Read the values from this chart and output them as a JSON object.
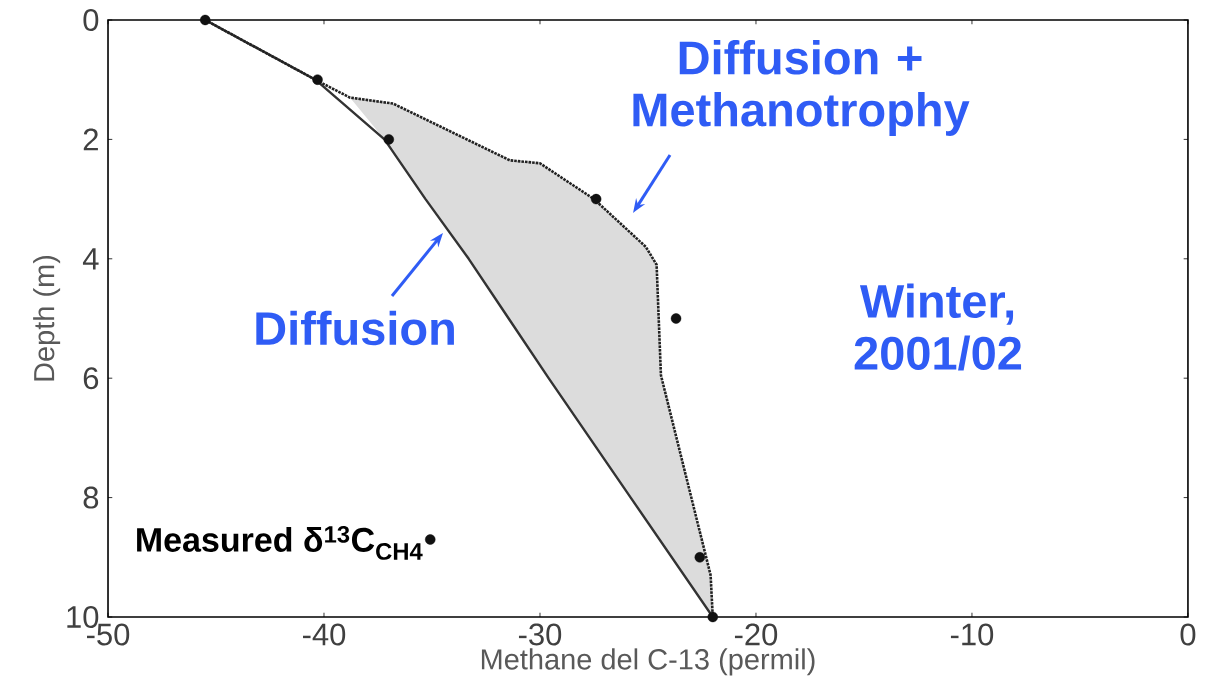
{
  "chart_data": {
    "type": "line",
    "xlabel": "Methane del C-13 (permil)",
    "ylabel": "Depth (m)",
    "xlim": [
      -50,
      0
    ],
    "xticks": [
      -50,
      -40,
      -30,
      -20,
      -10,
      0
    ],
    "ylim": [
      10,
      0
    ],
    "yticks": [
      0,
      2,
      4,
      6,
      8,
      10
    ],
    "legend": "bottom left",
    "marker": "circle",
    "series": [
      {
        "type": "area",
        "color": "#dcdcdc",
        "marker": "none",
        "x": [
          -38.8,
          -36.8,
          -31.4,
          -30.0,
          -27.5,
          -25.1,
          -24.6,
          -24.4,
          -22.1,
          -22.0,
          -25.8,
          -29.6,
          -33.3,
          -35.3,
          -37.2,
          -38.8
        ],
        "values": [
          1.3,
          1.4,
          2.35,
          2.4,
          3.0,
          3.8,
          4.1,
          5.95,
          9.3,
          10,
          8,
          6,
          4,
          3,
          2,
          1.3
        ]
      },
      {
        "type": "line",
        "color": "#333333",
        "line_style": "solid",
        "marker": "none",
        "x": [
          -45.5,
          -40.4,
          -37.2,
          -35.3,
          -33.3,
          -29.6,
          -25.8,
          -22.0
        ],
        "values": [
          0,
          1,
          2,
          3,
          4,
          6,
          8,
          10
        ]
      },
      {
        "color": "#222222",
        "line_style": "dotted",
        "marker": "none",
        "x": [
          -45.5,
          -40.4,
          -38.8,
          -36.8,
          -31.4,
          -30.0,
          -27.5,
          -25.1,
          -24.6,
          -24.4,
          -22.1,
          -22.0
        ],
        "values": [
          0,
          1,
          1.3,
          1.4,
          2.35,
          2.4,
          3.0,
          3.8,
          4.1,
          5.95,
          9.3,
          10
        ]
      },
      {
        "type": "scatter",
        "name": "Measured δ$^{13}$C$_{CH4}$",
        "color": "#111111",
        "x": [
          -45.5,
          -40.3,
          -37.0,
          -27.4,
          -23.7,
          -22.6,
          -22.0
        ],
        "values": [
          0,
          1,
          2,
          3,
          5,
          9,
          10
        ]
      }
    ],
    "annotations": [
      "Diffusion + Methanotrophy",
      "Diffusion",
      "Winter, 2001/02"
    ]
  }
}
